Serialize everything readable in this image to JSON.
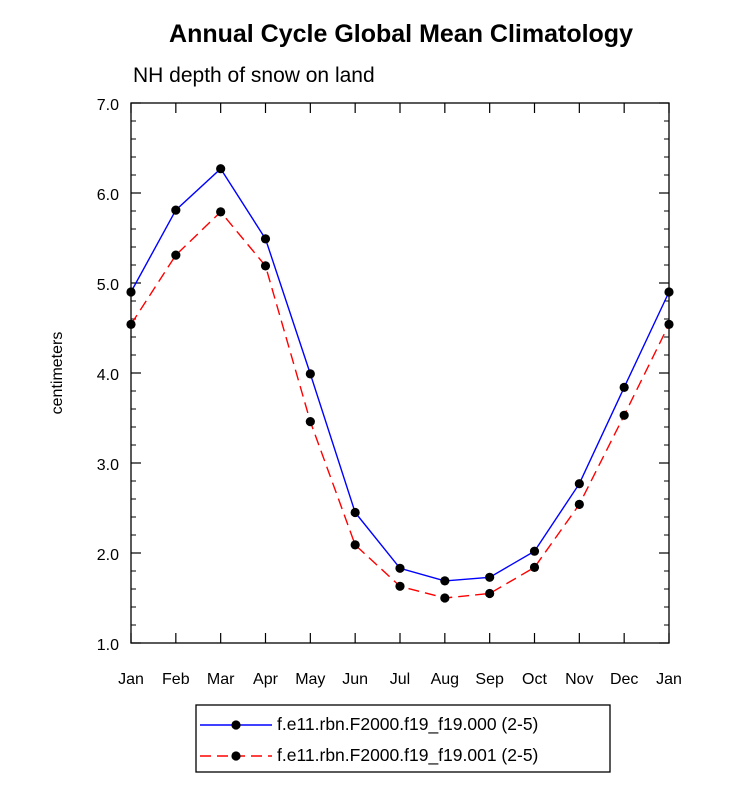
{
  "chart_data": {
    "type": "line",
    "title": "Annual Cycle Global Mean Climatology",
    "subtitle": "NH depth of snow on land",
    "xlabel": "",
    "ylabel": "centimeters",
    "categories": [
      "Jan",
      "Feb",
      "Mar",
      "Apr",
      "May",
      "Jun",
      "Jul",
      "Aug",
      "Sep",
      "Oct",
      "Nov",
      "Dec",
      "Jan"
    ],
    "ylim": [
      1.0,
      7.0
    ],
    "yticks": [
      "1.0",
      "2.0",
      "3.0",
      "4.0",
      "5.0",
      "6.0",
      "7.0"
    ],
    "grid": false,
    "legend_position": "bottom-center",
    "series": [
      {
        "name": "f.e11.rbn.F2000.f19_f19.000 (2-5)",
        "color": "#0000ff",
        "dash": "solid",
        "marker": "filled-circle",
        "values": [
          4.9,
          5.81,
          6.27,
          5.49,
          3.99,
          2.45,
          1.83,
          1.69,
          1.73,
          2.02,
          2.77,
          3.84,
          4.9
        ]
      },
      {
        "name": "f.e11.rbn.F2000.f19_f19.001 (2-5)",
        "color": "#ff0000",
        "dash": "dashed",
        "marker": "filled-circle",
        "values": [
          4.54,
          5.31,
          5.79,
          5.19,
          3.46,
          2.09,
          1.63,
          1.5,
          1.55,
          1.84,
          2.54,
          3.53,
          4.54
        ]
      }
    ]
  }
}
